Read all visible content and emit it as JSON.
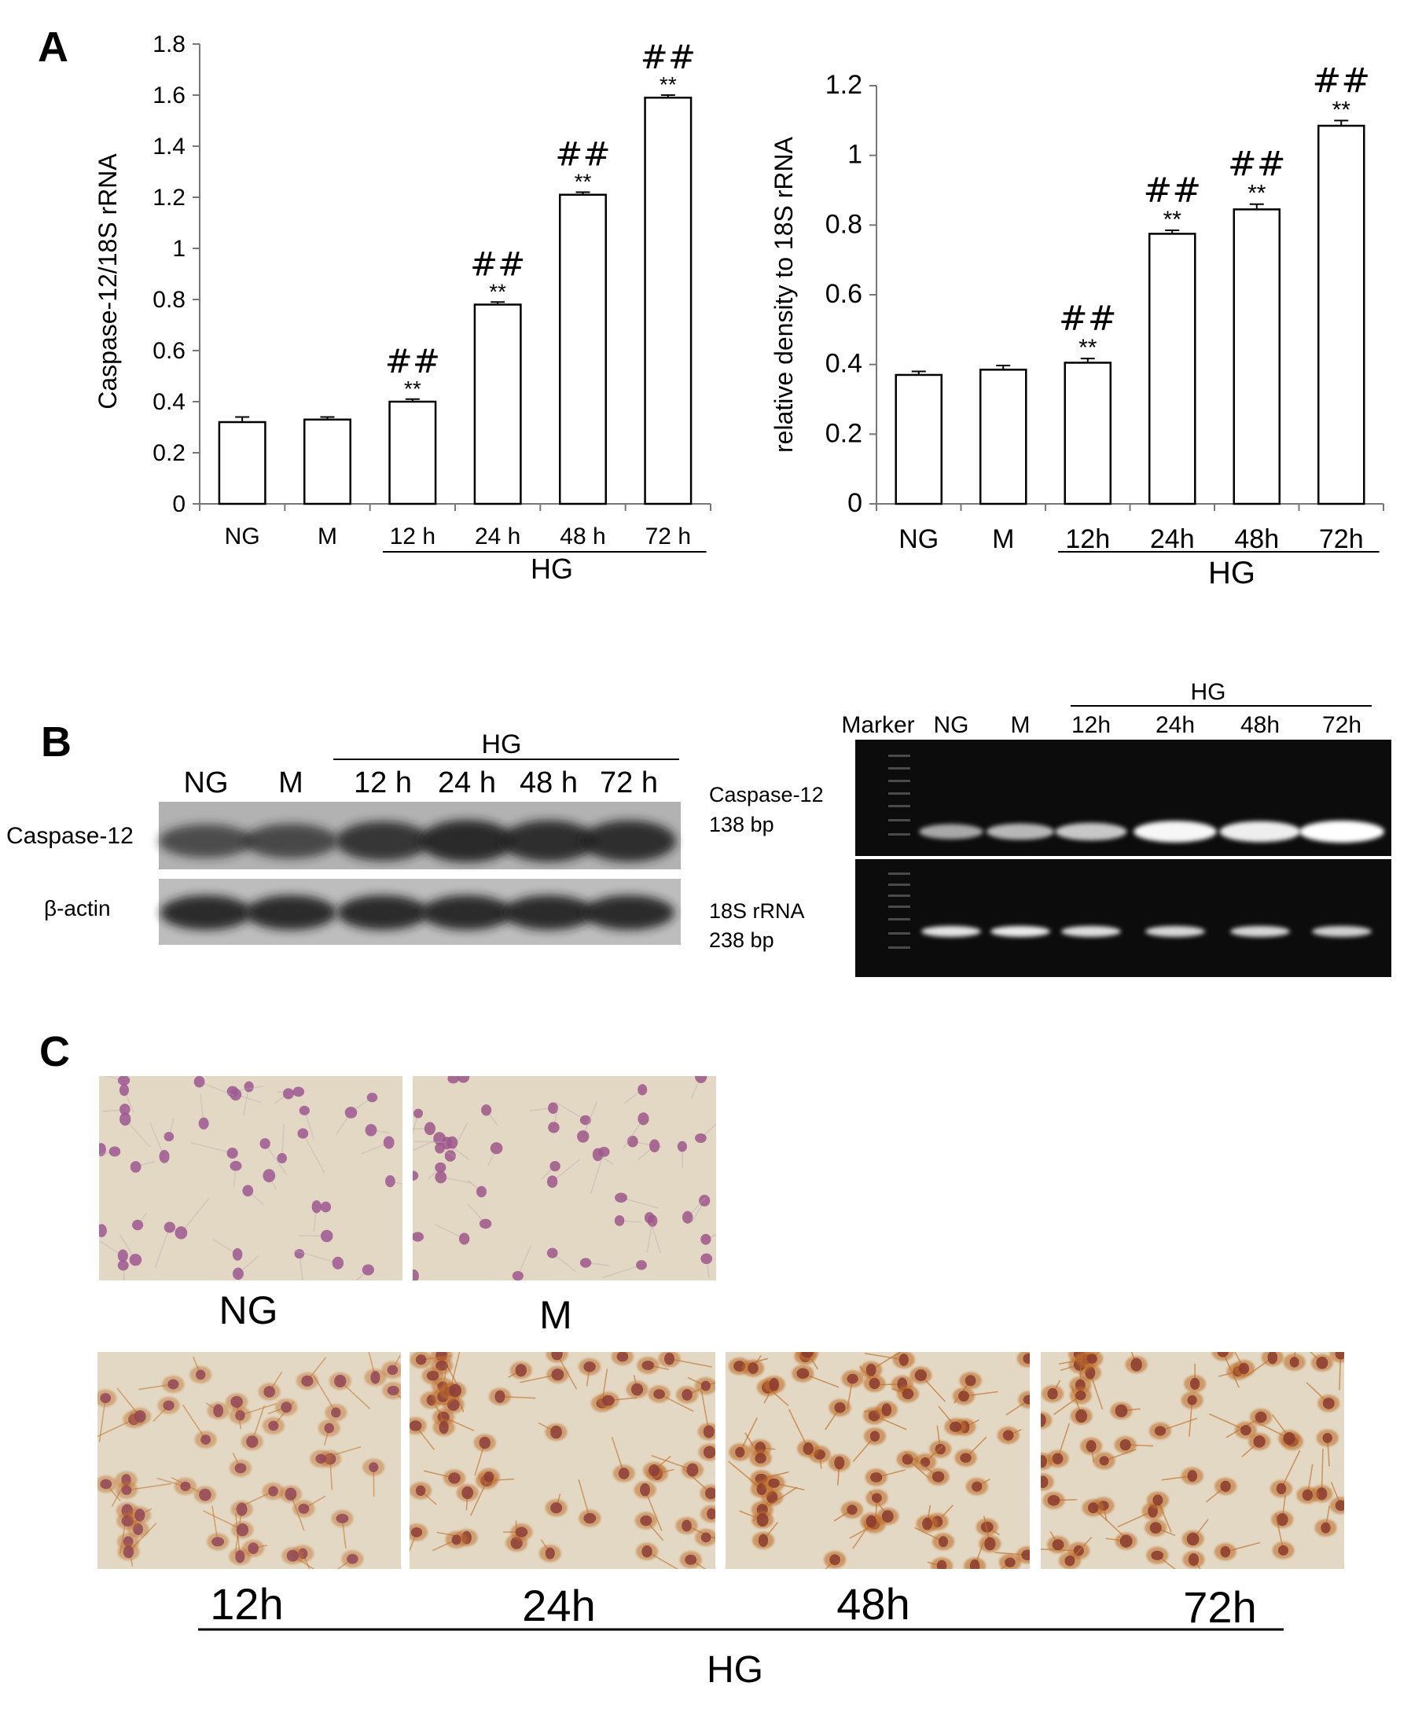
{
  "panels": {
    "a": "A",
    "b": "B",
    "c": "C"
  },
  "chart_data": [
    {
      "type": "bar",
      "ylabel": "Caspase-12/18S rRNA",
      "categories": [
        "NG",
        "M",
        "12 h",
        "24 h",
        "48 h",
        "72 h"
      ],
      "values": [
        0.32,
        0.33,
        0.4,
        0.78,
        1.21,
        1.59
      ],
      "errors": [
        0.02,
        0.01,
        0.01,
        0.01,
        0.01,
        0.01
      ],
      "ylim": [
        0,
        1.8
      ],
      "yticks": [
        "0",
        "0.2",
        "0.4",
        "0.6",
        "0.8",
        "1",
        "1.2",
        "1.4",
        "1.6",
        "1.8"
      ],
      "sig_star": [
        "",
        "",
        "**",
        "**",
        "**",
        "**"
      ],
      "sig_hash": [
        "",
        "",
        "##",
        "##",
        "##",
        "##"
      ],
      "group_label": "HG"
    },
    {
      "type": "bar",
      "ylabel": "relative density to 18S rRNA",
      "categories": [
        "NG",
        "M",
        "12h",
        "24h",
        "48h",
        "72h"
      ],
      "values": [
        0.37,
        0.385,
        0.405,
        0.775,
        0.845,
        1.085
      ],
      "errors": [
        0.01,
        0.012,
        0.012,
        0.01,
        0.015,
        0.015
      ],
      "ylim": [
        0,
        1.2
      ],
      "yticks": [
        "0",
        "0.2",
        "0.4",
        "0.6",
        "0.8",
        "1",
        "1.2"
      ],
      "sig_star": [
        "",
        "",
        "**",
        "**",
        "**",
        "**"
      ],
      "sig_hash": [
        "",
        "",
        "##",
        "##",
        "##",
        "##"
      ],
      "group_label": "HG"
    }
  ],
  "western": {
    "group_label": "HG",
    "lanes": [
      "NG",
      "M",
      "12 h",
      "24 h",
      "48 h",
      "72 h"
    ],
    "rows": [
      "Caspase-12",
      "β-actin"
    ]
  },
  "pcr": {
    "group_label": "HG",
    "lanes": [
      "Marker",
      "NG",
      "M",
      "12h",
      "24h",
      "48h",
      "72h"
    ],
    "row1_label": [
      "Caspase-12",
      "138 bp"
    ],
    "row2_label": [
      "18S rRNA",
      "238 bp"
    ],
    "row1_intensity": [
      0.45,
      0.55,
      0.65,
      0.95,
      0.9,
      1.0
    ],
    "row2_intensity": [
      0.8,
      0.85,
      0.75,
      0.7,
      0.7,
      0.65
    ]
  },
  "micrographs": {
    "top_labels": [
      "NG",
      "M"
    ],
    "bottom_labels": [
      "12h",
      "24h",
      "48h",
      "72h"
    ],
    "group_label": "HG",
    "stain_level": [
      0.05,
      0.1,
      0.45,
      0.65,
      0.8,
      0.75
    ],
    "cell_density": [
      0.45,
      0.5,
      0.55,
      0.7,
      0.8,
      0.75
    ],
    "colors": {
      "background": "#e3d8c3",
      "nucleus_negative": "#a05a9a",
      "nucleus_positive": "#8a3a2e",
      "stain": "#c0702a"
    }
  }
}
